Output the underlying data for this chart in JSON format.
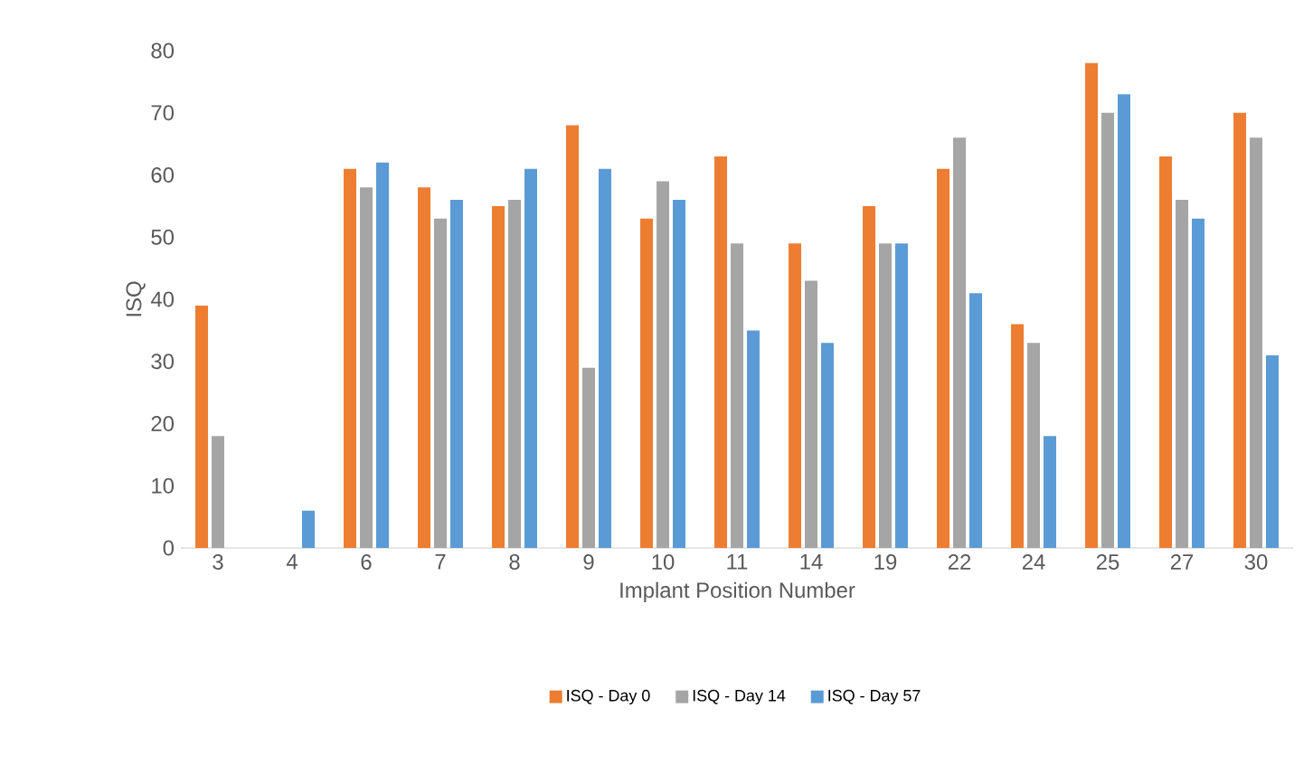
{
  "chart_data": {
    "type": "bar",
    "xlabel": "Implant Position Number",
    "ylabel": "ISQ",
    "categories": [
      "3",
      "4",
      "6",
      "7",
      "8",
      "9",
      "10",
      "11",
      "14",
      "19",
      "22",
      "24",
      "25",
      "27",
      "30"
    ],
    "series": [
      {
        "name": "ISQ - Day 0",
        "color": "#ed7d31",
        "values": [
          39,
          null,
          61,
          58,
          55,
          68,
          53,
          63,
          49,
          55,
          61,
          36,
          78,
          63,
          70
        ]
      },
      {
        "name": "ISQ - Day 14",
        "color": "#a5a5a5",
        "values": [
          18,
          null,
          58,
          53,
          56,
          29,
          59,
          49,
          43,
          49,
          66,
          33,
          70,
          56,
          66
        ]
      },
      {
        "name": "ISQ - Day 57",
        "color": "#5b9bd5",
        "values": [
          null,
          6,
          62,
          56,
          61,
          61,
          56,
          35,
          33,
          49,
          41,
          18,
          73,
          53,
          31
        ]
      }
    ],
    "ylim": [
      0,
      80
    ],
    "yticks": [
      0,
      10,
      20,
      30,
      40,
      50,
      60,
      70,
      80
    ],
    "grid": false,
    "legend": "bottom"
  }
}
